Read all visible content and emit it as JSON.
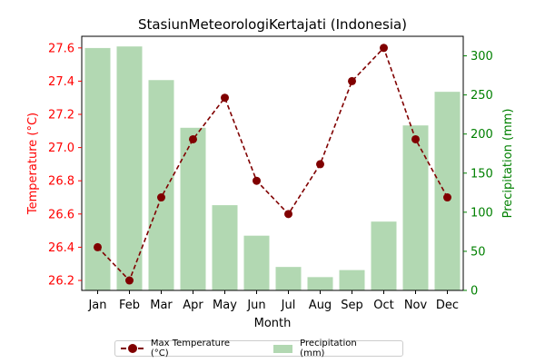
{
  "chart_data": {
    "type": "bar+line",
    "title": "StasiunMeteorologiKertajati (Indonesia)",
    "xlabel": "Month",
    "ylabel_left": "Temperature (°C)",
    "ylabel_right": "Precipitation (mm)",
    "categories": [
      "Jan",
      "Feb",
      "Mar",
      "Apr",
      "May",
      "Jun",
      "Jul",
      "Aug",
      "Sep",
      "Oct",
      "Nov",
      "Dec"
    ],
    "ylim_left": [
      26.14,
      27.67
    ],
    "ylim_right": [
      0,
      325
    ],
    "yticks_left": [
      "26.2",
      "26.4",
      "26.6",
      "26.8",
      "27.0",
      "27.2",
      "27.4",
      "27.6"
    ],
    "yticks_right": [
      "0",
      "50",
      "100",
      "150",
      "200",
      "250",
      "300"
    ],
    "series": [
      {
        "name": "Max Temperature (°C)",
        "type": "line",
        "axis": "left",
        "color": "#800000",
        "values": [
          26.4,
          26.2,
          26.7,
          27.05,
          27.3,
          26.8,
          26.6,
          26.9,
          27.4,
          27.6,
          27.05,
          26.7
        ]
      },
      {
        "name": "Precipitation (mm)",
        "type": "bar",
        "axis": "right",
        "color": "#b2d8b2",
        "values": [
          310,
          312,
          269,
          208,
          109,
          70,
          30,
          17,
          26,
          88,
          211,
          254
        ]
      }
    ],
    "left_axis_color": "#ff0000",
    "right_axis_color": "#008000",
    "legend": "below"
  }
}
